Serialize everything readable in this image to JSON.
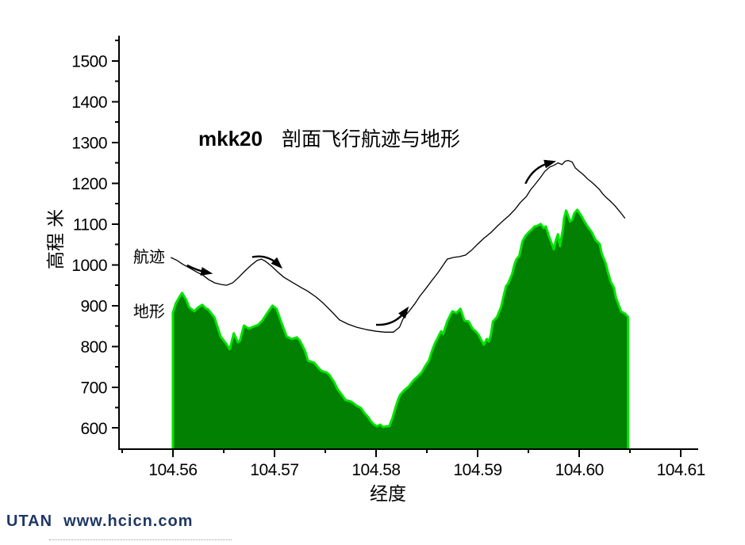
{
  "title": {
    "prefix": "mkk20",
    "text": "剖面飞行航迹与地形"
  },
  "footer": {
    "brand": "UTAN",
    "url": "www.hcicn.com",
    "color": "#1F3864"
  },
  "chart_data": {
    "type": "area",
    "title": "mkk20 剖面飞行航迹与地形",
    "xlabel": "经度",
    "ylabel": "高程 米",
    "xlim": [
      104.5547,
      104.6117
    ],
    "ylim": [
      548,
      1562
    ],
    "grid": false,
    "axis_color": "#000000",
    "x_ticks": {
      "major": [
        104.56,
        104.57,
        104.58,
        104.59,
        104.6,
        104.61
      ],
      "labels": [
        "104.56",
        "104.57",
        "104.58",
        "104.59",
        "104.60",
        "104.61"
      ],
      "minor": [
        104.555,
        104.565,
        104.575,
        104.585,
        104.595,
        104.605
      ]
    },
    "y_ticks": {
      "major": [
        600,
        700,
        800,
        900,
        1000,
        1100,
        1200,
        1300,
        1400,
        1500
      ],
      "labels": [
        "600",
        "700",
        "800",
        "900",
        "1000",
        "1100",
        "1200",
        "1300",
        "1400",
        "1500"
      ],
      "minor": [
        650,
        750,
        850,
        950,
        1050,
        1150,
        1250,
        1350,
        1450,
        1550
      ]
    },
    "series": [
      {
        "name": "地形",
        "type": "area",
        "fill": "#028002",
        "stroke": "#00E400",
        "points": [
          [
            104.56,
            882
          ],
          [
            104.5603,
            906
          ],
          [
            104.5606,
            919
          ],
          [
            104.5609,
            931
          ],
          [
            104.5613,
            915
          ],
          [
            104.5616,
            896
          ],
          [
            104.5621,
            886
          ],
          [
            104.5625,
            896
          ],
          [
            104.5629,
            902
          ],
          [
            104.5632,
            894
          ],
          [
            104.5635,
            890
          ],
          [
            104.5641,
            870
          ],
          [
            104.5647,
            824
          ],
          [
            104.5652,
            808
          ],
          [
            104.5656,
            793
          ],
          [
            104.566,
            832
          ],
          [
            104.5664,
            810
          ],
          [
            104.5666,
            814
          ],
          [
            104.567,
            851
          ],
          [
            104.5675,
            843
          ],
          [
            104.5678,
            847
          ],
          [
            104.5684,
            853
          ],
          [
            104.5688,
            863
          ],
          [
            104.5693,
            882
          ],
          [
            104.5698,
            900
          ],
          [
            104.5702,
            892
          ],
          [
            104.5707,
            857
          ],
          [
            104.5712,
            824
          ],
          [
            104.5717,
            818
          ],
          [
            104.5722,
            822
          ],
          [
            104.5725,
            814
          ],
          [
            104.573,
            789
          ],
          [
            104.5733,
            765
          ],
          [
            104.5739,
            760
          ],
          [
            104.5743,
            748
          ],
          [
            104.5746,
            740
          ],
          [
            104.5751,
            736
          ],
          [
            104.5754,
            730
          ],
          [
            104.5759,
            711
          ],
          [
            104.5762,
            695
          ],
          [
            104.5766,
            682
          ],
          [
            104.577,
            668
          ],
          [
            104.5774,
            666
          ],
          [
            104.5777,
            662
          ],
          [
            104.5781,
            654
          ],
          [
            104.5785,
            649
          ],
          [
            104.5789,
            635
          ],
          [
            104.5792,
            627
          ],
          [
            104.5795,
            616
          ],
          [
            104.5798,
            608
          ],
          [
            104.5801,
            604
          ],
          [
            104.5804,
            608
          ],
          [
            104.5807,
            602
          ],
          [
            104.581,
            604
          ],
          [
            104.5813,
            604
          ],
          [
            104.5816,
            623
          ],
          [
            104.5819,
            649
          ],
          [
            104.5822,
            672
          ],
          [
            104.5824,
            682
          ],
          [
            104.5828,
            693
          ],
          [
            104.5832,
            701
          ],
          [
            104.5837,
            717
          ],
          [
            104.5841,
            726
          ],
          [
            104.5845,
            736
          ],
          [
            104.5848,
            750
          ],
          [
            104.5852,
            765
          ],
          [
            104.5855,
            789
          ],
          [
            104.5858,
            808
          ],
          [
            104.5861,
            822
          ],
          [
            104.5864,
            837
          ],
          [
            104.5866,
            830
          ],
          [
            104.587,
            861
          ],
          [
            104.5873,
            876
          ],
          [
            104.5875,
            886
          ],
          [
            104.5879,
            882
          ],
          [
            104.5883,
            892
          ],
          [
            104.5887,
            863
          ],
          [
            104.5891,
            861
          ],
          [
            104.5895,
            843
          ],
          [
            104.5898,
            837
          ],
          [
            104.5901,
            828
          ],
          [
            104.5903,
            818
          ],
          [
            104.5906,
            804
          ],
          [
            104.5909,
            818
          ],
          [
            104.5911,
            812
          ],
          [
            104.5913,
            828
          ],
          [
            104.5915,
            861
          ],
          [
            104.5919,
            872
          ],
          [
            104.5923,
            896
          ],
          [
            104.5926,
            929
          ],
          [
            104.5928,
            948
          ],
          [
            104.593,
            954
          ],
          [
            104.5934,
            978
          ],
          [
            104.5936,
            999
          ],
          [
            104.5938,
            1013
          ],
          [
            104.5941,
            1022
          ],
          [
            104.5944,
            1057
          ],
          [
            104.5947,
            1071
          ],
          [
            104.595,
            1079
          ],
          [
            104.5953,
            1086
          ],
          [
            104.5956,
            1094
          ],
          [
            104.5959,
            1096
          ],
          [
            104.5962,
            1100
          ],
          [
            104.5965,
            1090
          ],
          [
            104.5967,
            1094
          ],
          [
            104.597,
            1071
          ],
          [
            104.5973,
            1051
          ],
          [
            104.5975,
            1038
          ],
          [
            104.5977,
            1061
          ],
          [
            104.5979,
            1075
          ],
          [
            104.5981,
            1046
          ],
          [
            104.5984,
            1090
          ],
          [
            104.5985,
            1114
          ],
          [
            104.5987,
            1133
          ],
          [
            104.5989,
            1120
          ],
          [
            104.5991,
            1106
          ],
          [
            104.5993,
            1110
          ],
          [
            104.5995,
            1126
          ],
          [
            104.5998,
            1135
          ],
          [
            104.6002,
            1120
          ],
          [
            104.6005,
            1106
          ],
          [
            104.6008,
            1094
          ],
          [
            104.6012,
            1081
          ],
          [
            104.6016,
            1061
          ],
          [
            104.602,
            1051
          ],
          [
            104.6022,
            1028
          ],
          [
            104.6026,
            1003
          ],
          [
            104.6028,
            983
          ],
          [
            104.6031,
            958
          ],
          [
            104.6034,
            944
          ],
          [
            104.6036,
            919
          ],
          [
            104.6039,
            900
          ],
          [
            104.6041,
            886
          ],
          [
            104.6045,
            880
          ],
          [
            104.6048,
            872
          ]
        ]
      },
      {
        "name": "航迹",
        "type": "line",
        "stroke": "#000000",
        "points": [
          [
            104.5598,
            1018
          ],
          [
            104.5604,
            1011
          ],
          [
            104.561,
            1001
          ],
          [
            104.5616,
            993
          ],
          [
            104.5623,
            983
          ],
          [
            104.563,
            974
          ],
          [
            104.5635,
            964
          ],
          [
            104.5641,
            956
          ],
          [
            104.5647,
            952
          ],
          [
            104.5653,
            950
          ],
          [
            104.5659,
            956
          ],
          [
            104.5665,
            970
          ],
          [
            104.5671,
            985
          ],
          [
            104.5677,
            999
          ],
          [
            104.5683,
            1011
          ],
          [
            104.5687,
            1014
          ],
          [
            104.5691,
            1009
          ],
          [
            104.5697,
            997
          ],
          [
            104.5703,
            983
          ],
          [
            104.5709,
            970
          ],
          [
            104.5717,
            958
          ],
          [
            104.5725,
            946
          ],
          [
            104.5733,
            935
          ],
          [
            104.5741,
            921
          ],
          [
            104.5748,
            906
          ],
          [
            104.5756,
            886
          ],
          [
            104.5764,
            865
          ],
          [
            104.5772,
            855
          ],
          [
            104.5781,
            847
          ],
          [
            104.5791,
            841
          ],
          [
            104.58,
            837
          ],
          [
            104.5809,
            835
          ],
          [
            104.5817,
            835
          ],
          [
            104.5823,
            847
          ],
          [
            104.5827,
            870
          ],
          [
            104.5833,
            888
          ],
          [
            104.5838,
            904
          ],
          [
            104.5843,
            923
          ],
          [
            104.5849,
            942
          ],
          [
            104.5855,
            962
          ],
          [
            104.5861,
            981
          ],
          [
            104.5866,
            999
          ],
          [
            104.587,
            1014
          ],
          [
            104.5876,
            1018
          ],
          [
            104.5882,
            1020
          ],
          [
            104.5888,
            1024
          ],
          [
            104.5894,
            1036
          ],
          [
            104.59,
            1051
          ],
          [
            104.5906,
            1065
          ],
          [
            104.5913,
            1079
          ],
          [
            104.5919,
            1094
          ],
          [
            104.5925,
            1108
          ],
          [
            104.5931,
            1121
          ],
          [
            104.5937,
            1137
          ],
          [
            104.5942,
            1153
          ],
          [
            104.5948,
            1168
          ],
          [
            104.5952,
            1184
          ],
          [
            104.5957,
            1199
          ],
          [
            104.5962,
            1215
          ],
          [
            104.5966,
            1229
          ],
          [
            104.5971,
            1240
          ],
          [
            104.5975,
            1244
          ],
          [
            104.5979,
            1250
          ],
          [
            104.5983,
            1246
          ],
          [
            104.5986,
            1254
          ],
          [
            104.5989,
            1256
          ],
          [
            104.5993,
            1252
          ],
          [
            104.5996,
            1238
          ],
          [
            104.6,
            1229
          ],
          [
            104.6004,
            1221
          ],
          [
            104.6008,
            1211
          ],
          [
            104.6012,
            1203
          ],
          [
            104.6016,
            1194
          ],
          [
            104.602,
            1184
          ],
          [
            104.6023,
            1174
          ],
          [
            104.6027,
            1164
          ],
          [
            104.6031,
            1155
          ],
          [
            104.6035,
            1145
          ],
          [
            104.6039,
            1133
          ],
          [
            104.6042,
            1124
          ],
          [
            104.6045,
            1114
          ]
        ]
      }
    ],
    "annotations": {
      "series_labels": [
        {
          "text": "航迹",
          "x": 104.5561,
          "y": 1020
        },
        {
          "text": "地形",
          "x": 104.5561,
          "y": 886
        }
      ],
      "arrows": [
        {
          "from": [
            104.5614,
            999
          ],
          "to": [
            104.5634,
            981
          ],
          "bend": 2
        },
        {
          "from": [
            104.5678,
            1019
          ],
          "to": [
            104.5704,
            1000
          ],
          "bend": -9
        },
        {
          "from": [
            104.58,
            853
          ],
          "to": [
            104.5829,
            887
          ],
          "bend": 11
        },
        {
          "from": [
            104.5947,
            1199
          ],
          "to": [
            104.5972,
            1251
          ],
          "bend": -10
        }
      ]
    }
  }
}
